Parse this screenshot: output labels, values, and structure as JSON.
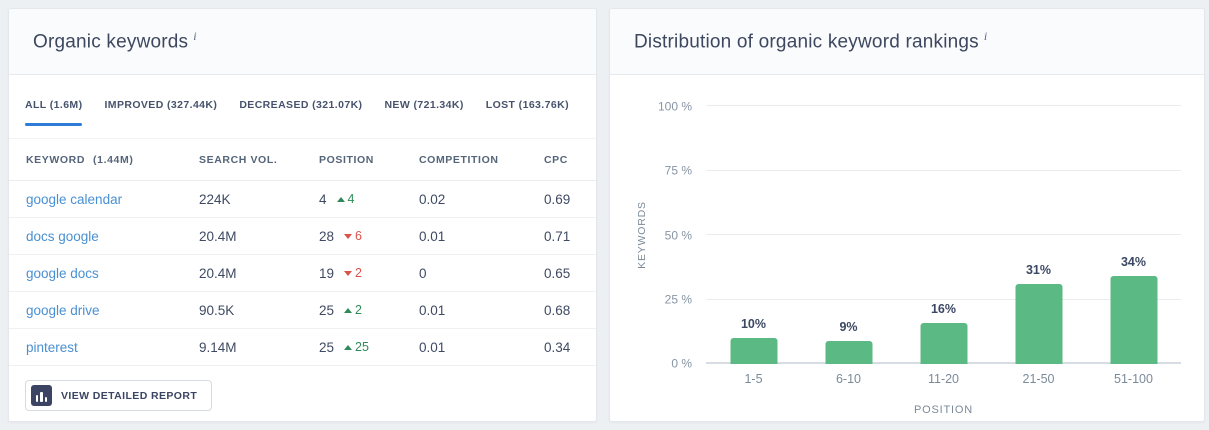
{
  "left_panel": {
    "title": "Organic keywords",
    "info_icon": "i",
    "tabs": [
      {
        "id": "all",
        "label": "ALL (1.6M)",
        "active": true
      },
      {
        "id": "improved",
        "label": "IMPROVED (327.44K)",
        "active": false
      },
      {
        "id": "decreased",
        "label": "DECREASED (321.07K)",
        "active": false
      },
      {
        "id": "new",
        "label": "NEW (721.34K)",
        "active": false
      },
      {
        "id": "lost",
        "label": "LOST (163.76K)",
        "active": false
      }
    ],
    "table": {
      "columns": {
        "keyword": "KEYWORD",
        "keyword_count": "(1.44M)",
        "search_vol": "SEARCH VOL.",
        "position": "POSITION",
        "competition": "COMPETITION",
        "cpc": "CPC"
      },
      "rows": [
        {
          "keyword": "google calendar",
          "search_vol": "224K",
          "position": "4",
          "change": "4",
          "direction": "up",
          "competition": "0.02",
          "cpc": "0.69"
        },
        {
          "keyword": "docs google",
          "search_vol": "20.4M",
          "position": "28",
          "change": "6",
          "direction": "down",
          "competition": "0.01",
          "cpc": "0.71"
        },
        {
          "keyword": "google docs",
          "search_vol": "20.4M",
          "position": "19",
          "change": "2",
          "direction": "down",
          "competition": "0",
          "cpc": "0.65"
        },
        {
          "keyword": "google drive",
          "search_vol": "90.5K",
          "position": "25",
          "change": "2",
          "direction": "up",
          "competition": "0.01",
          "cpc": "0.68"
        },
        {
          "keyword": "pinterest",
          "search_vol": "9.14M",
          "position": "25",
          "change": "25",
          "direction": "up",
          "competition": "0.01",
          "cpc": "0.34"
        }
      ]
    },
    "button": {
      "label": "VIEW DETAILED REPORT",
      "icon": "bar-chart-icon"
    }
  },
  "right_panel": {
    "title": "Distribution of organic keyword rankings",
    "info_icon": "i"
  },
  "chart_data": {
    "type": "bar",
    "title": "Distribution of organic keyword rankings",
    "categories": [
      "1-5",
      "6-10",
      "11-20",
      "21-50",
      "51-100"
    ],
    "values": [
      10,
      9,
      16,
      31,
      34
    ],
    "value_labels": [
      "10%",
      "9%",
      "16%",
      "31%",
      "34%"
    ],
    "xlabel": "POSITION",
    "ylabel": "KEYWORDS",
    "ylim": [
      0,
      100
    ],
    "yticks": [
      {
        "label": "100 %",
        "value": 100
      },
      {
        "label": "75 %",
        "value": 75
      },
      {
        "label": "50 %",
        "value": 50
      },
      {
        "label": "25 %",
        "value": 25
      },
      {
        "label": "0 %",
        "value": 0
      }
    ],
    "grid": true,
    "legend": false,
    "bar_color": "#5bb983"
  },
  "colors": {
    "accent_blue": "#2e7cd6",
    "link_blue": "#4990d2",
    "positive_green": "#2f8a58",
    "negative_red": "#d9534a",
    "bar_green": "#5bb983",
    "page_background": "#edf0f3"
  }
}
